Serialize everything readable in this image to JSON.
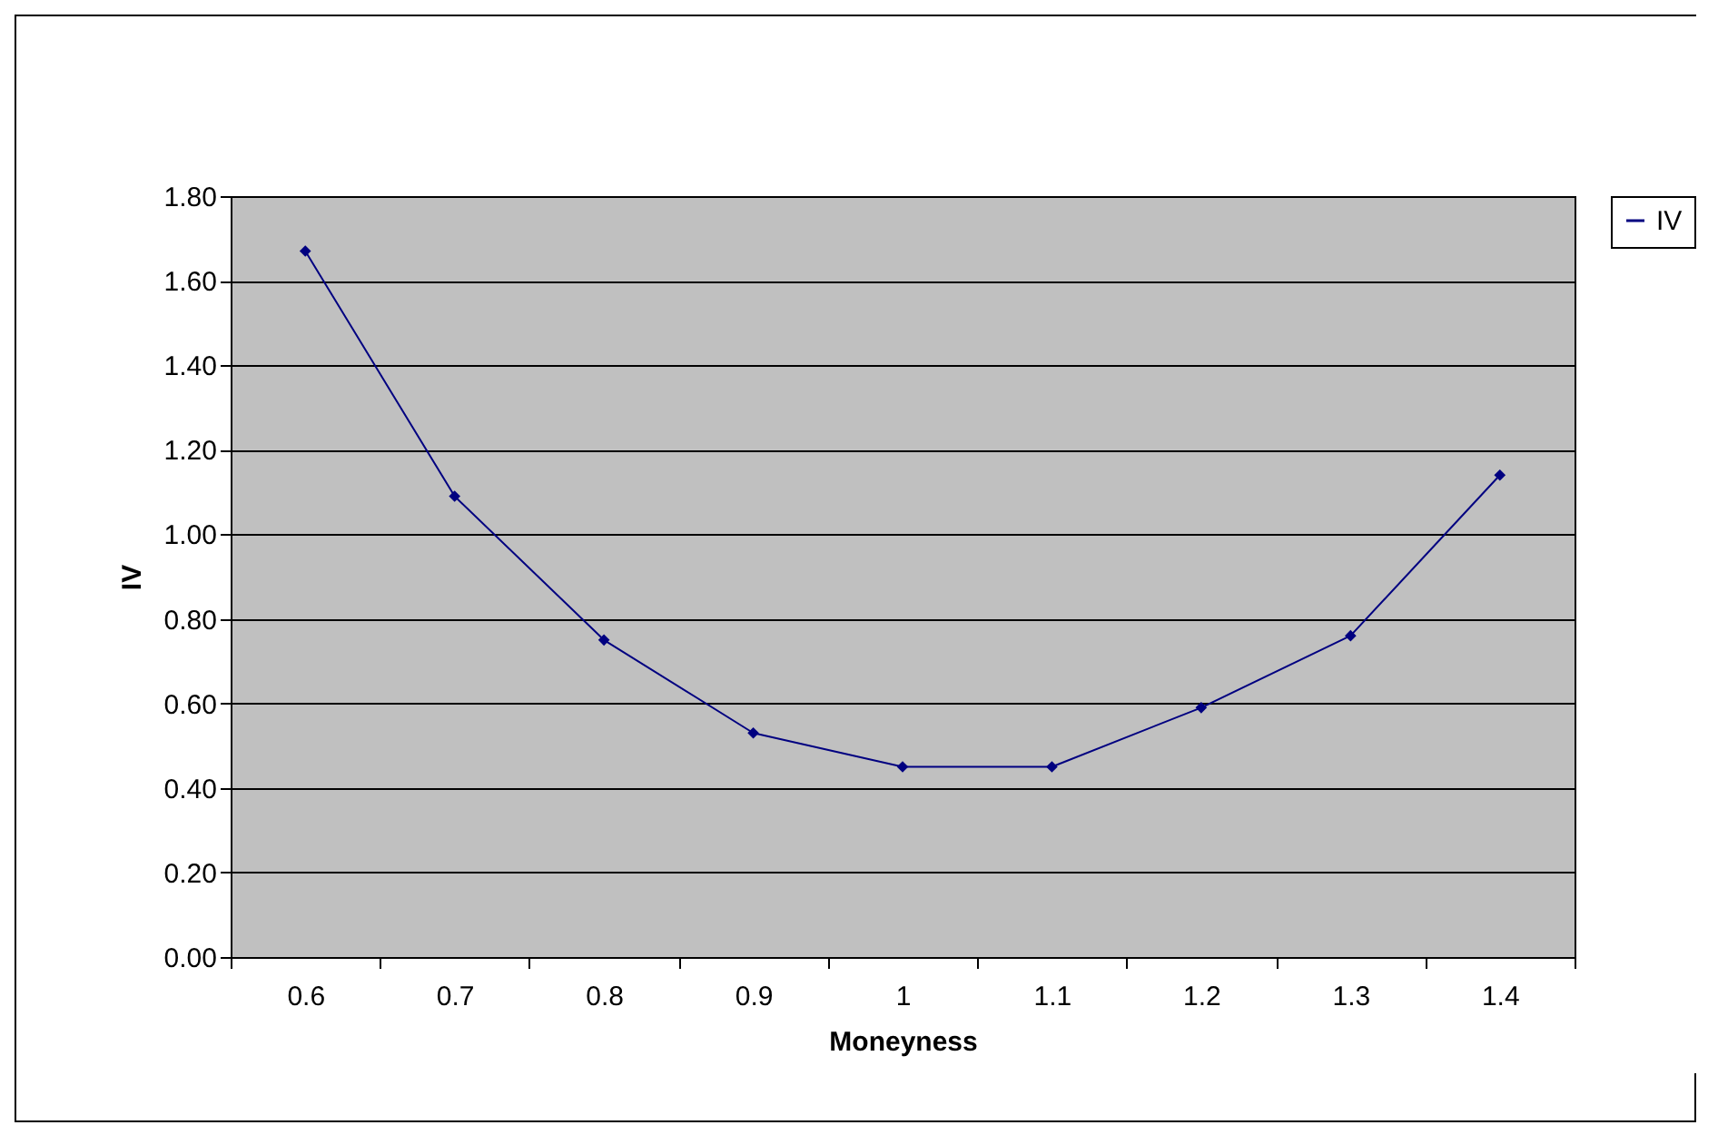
{
  "chart_data": {
    "type": "line",
    "xlabel": "Moneyness",
    "ylabel": "IV",
    "categories": [
      "0.6",
      "0.7",
      "0.8",
      "0.9",
      "1",
      "1.1",
      "1.2",
      "1.3",
      "1.4"
    ],
    "series": [
      {
        "name": "IV",
        "color": "#000080",
        "values": [
          1.67,
          1.09,
          0.75,
          0.53,
          0.45,
          0.45,
          0.59,
          0.76,
          1.14
        ]
      }
    ],
    "ylim": [
      0,
      1.8
    ],
    "yticks": [
      {
        "value": 0,
        "label": "0.00"
      },
      {
        "value": 0.2,
        "label": "0.20"
      },
      {
        "value": 0.4,
        "label": "0.40"
      },
      {
        "value": 0.6,
        "label": "0.60"
      },
      {
        "value": 0.8,
        "label": "0.80"
      },
      {
        "value": 1,
        "label": "1.00"
      },
      {
        "value": 1.2,
        "label": "1.20"
      },
      {
        "value": 1.4,
        "label": "1.40"
      },
      {
        "value": 1.6,
        "label": "1.60"
      },
      {
        "value": 1.8,
        "label": "1.80"
      }
    ],
    "grid": "y",
    "legend": "right",
    "marker": "diamond",
    "line_style": "solid"
  }
}
